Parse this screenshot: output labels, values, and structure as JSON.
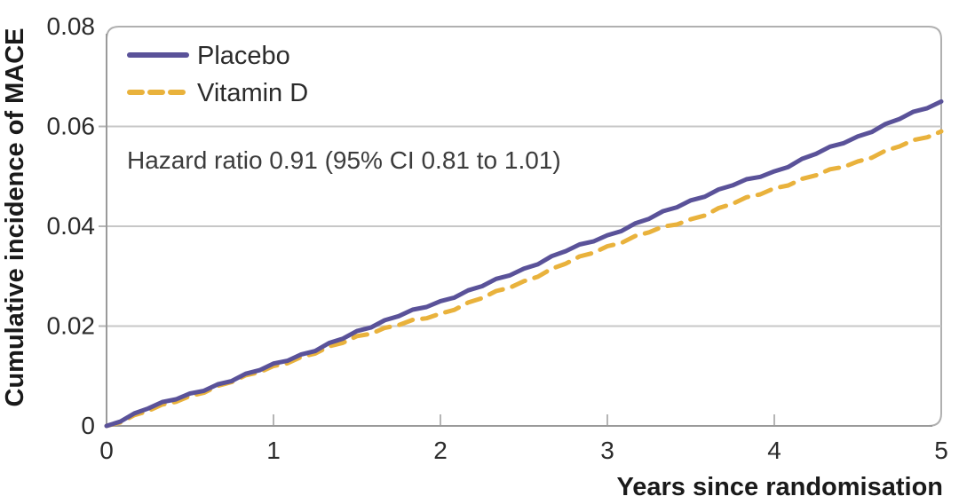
{
  "chart_data": {
    "type": "line",
    "title": "",
    "xlabel": "Years since randomisation",
    "ylabel": "Cumulative incidence of MACE",
    "annotation": "Hazard ratio 0.91 (95% CI 0.81 to 1.01)",
    "xlim": [
      0,
      5
    ],
    "ylim": [
      0,
      0.08
    ],
    "xticks": {
      "values": [
        0,
        1,
        2,
        3,
        4,
        5
      ],
      "labels": [
        "0",
        "1",
        "2",
        "3",
        "4",
        "5"
      ]
    },
    "yticks": {
      "values": [
        0,
        0.02,
        0.04,
        0.06,
        0.08
      ],
      "labels": [
        "0",
        "0.02",
        "0.04",
        "0.06",
        "0.08"
      ]
    },
    "grid": "horizontal",
    "legend_position": "top-left-inside",
    "x": [
      0,
      0.25,
      0.5,
      0.75,
      1,
      1.25,
      1.5,
      1.75,
      2,
      2.25,
      2.5,
      2.75,
      3,
      3.25,
      3.5,
      3.75,
      4,
      4.25,
      4.5,
      4.75,
      5
    ],
    "series": [
      {
        "name": "Placebo",
        "style": "solid",
        "color": "#5a5299",
        "values": [
          0,
          0.0035,
          0.0065,
          0.009,
          0.0125,
          0.015,
          0.019,
          0.022,
          0.025,
          0.028,
          0.0315,
          0.035,
          0.0382,
          0.0415,
          0.0452,
          0.0482,
          0.051,
          0.0545,
          0.058,
          0.0615,
          0.065
        ]
      },
      {
        "name": "Vitamin D",
        "style": "dashed",
        "color": "#e9b23c",
        "values": [
          0,
          0.003,
          0.006,
          0.0088,
          0.012,
          0.0145,
          0.018,
          0.0202,
          0.0225,
          0.0256,
          0.029,
          0.0325,
          0.036,
          0.0388,
          0.0414,
          0.0445,
          0.0476,
          0.0502,
          0.053,
          0.056,
          0.059
        ]
      }
    ],
    "colors": {
      "gridline": "#c7c7c7",
      "border": "#b0b0b0",
      "axis": "#9a9a9a",
      "tick": "#b5b5b5",
      "text": "#1a1a1a"
    }
  }
}
